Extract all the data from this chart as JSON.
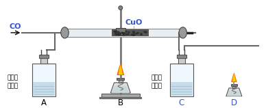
{
  "bg_color": "#ffffff",
  "co_label": "CO",
  "cuo_label": "CuO",
  "label_a": "A",
  "label_b": "B",
  "label_c": "C",
  "label_d": "D",
  "lime_water_label_a": "澄清的\n石灰水",
  "lime_water_label_c": "澄清的\n石灰水",
  "co_color": "#3355cc",
  "cuo_color": "#3355cc",
  "label_color": "#3355cc",
  "black": "#000000",
  "tube_color": "#888888",
  "bottle_body_fill": "#f0f8ff",
  "bottle_edge": "#555555",
  "water_fill": "#c8dce8",
  "water_line_color": "#99bbcc",
  "neck_fill": "#cccccc",
  "cap_fill": "#888888",
  "stopper_fill": "#aaaaaa",
  "cuo_fill": "#555555",
  "rod_color": "#777777",
  "flame_outer": "#ff6600",
  "flame_inner": "#ffcc00",
  "lamp_body_fill": "#dddddd",
  "lamp_edge": "#555555",
  "stand_fill": "#aaaaaa",
  "stand_edge": "#555555"
}
